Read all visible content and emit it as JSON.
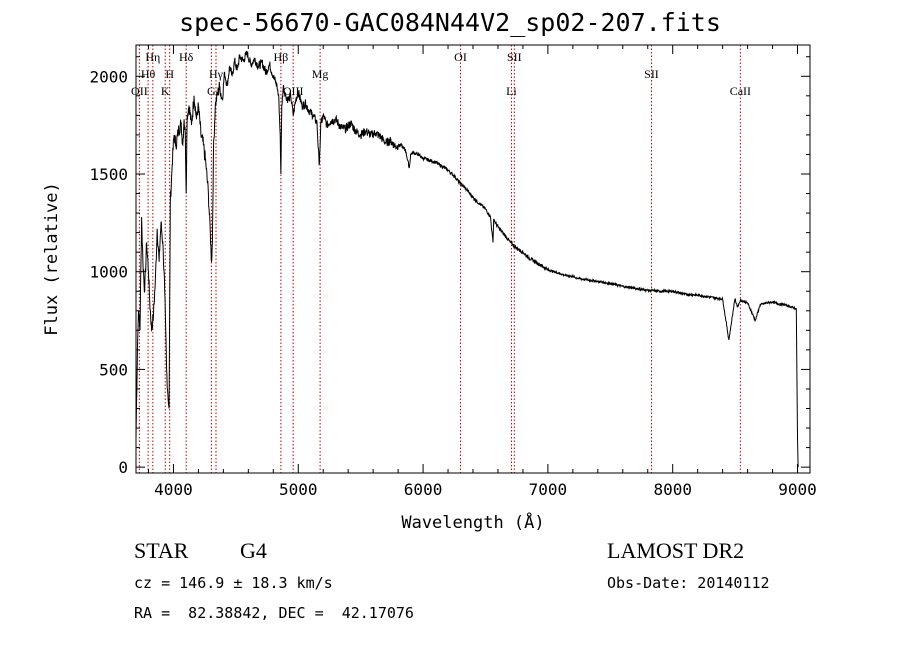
{
  "chart_data": {
    "type": "line",
    "title": "spec-56670-GAC084N44V2_sp02-207.fits",
    "xlabel": "Wavelength (Å)",
    "ylabel": "Flux (relative)",
    "xlim": [
      3700,
      9100
    ],
    "ylim": [
      -30,
      2160
    ],
    "xticks": [
      4000,
      5000,
      6000,
      7000,
      8000,
      9000
    ],
    "yticks": [
      0,
      500,
      1000,
      1500,
      2000
    ],
    "x_minor_step": 200,
    "y_minor_step": 100,
    "spectrum": {
      "name": "flux",
      "x": [
        3700,
        3712,
        3720,
        3732,
        3745,
        3755,
        3770,
        3785,
        3800,
        3810,
        3825,
        3840,
        3855,
        3870,
        3885,
        3900,
        3915,
        3930,
        3945,
        3955,
        3965,
        3975,
        3990,
        4005,
        4020,
        4040,
        4060,
        4075,
        4085,
        4095,
        4102,
        4110,
        4125,
        4145,
        4165,
        4185,
        4200,
        4220,
        4240,
        4260,
        4280,
        4295,
        4305,
        4312,
        4320,
        4335,
        4350,
        4370,
        4390,
        4410,
        4430,
        4450,
        4470,
        4490,
        4510,
        4530,
        4560,
        4590,
        4620,
        4650,
        4680,
        4710,
        4740,
        4770,
        4800,
        4830,
        4845,
        4855,
        4861,
        4868,
        4880,
        4900,
        4920,
        4940,
        4960,
        4980,
        5000,
        5030,
        5060,
        5090,
        5120,
        5150,
        5167,
        5172,
        5180,
        5200,
        5230,
        5260,
        5300,
        5340,
        5380,
        5420,
        5460,
        5500,
        5540,
        5580,
        5620,
        5660,
        5700,
        5740,
        5780,
        5820,
        5860,
        5890,
        5900,
        5920,
        5960,
        6000,
        6050,
        6100,
        6150,
        6200,
        6250,
        6300,
        6350,
        6400,
        6450,
        6500,
        6540,
        6560,
        6563,
        6566,
        6580,
        6600,
        6650,
        6700,
        6750,
        6800,
        6850,
        6900,
        6950,
        7000,
        7050,
        7100,
        7150,
        7200,
        7250,
        7300,
        7350,
        7400,
        7500,
        7600,
        7700,
        7800,
        7900,
        8000,
        8100,
        8200,
        8300,
        8400,
        8450,
        8498,
        8520,
        8542,
        8560,
        8600,
        8662,
        8700,
        8750,
        8800,
        8850,
        8900,
        8950,
        8990,
        9000,
        9005
      ],
      "y": [
        150,
        620,
        800,
        700,
        1280,
        1050,
        900,
        1150,
        1000,
        850,
        700,
        780,
        950,
        1220,
        1050,
        1250,
        1150,
        900,
        500,
        380,
        300,
        1350,
        1550,
        1700,
        1650,
        1720,
        1760,
        1650,
        1780,
        1700,
        1400,
        1800,
        1850,
        1750,
        1900,
        1780,
        1850,
        1700,
        1650,
        1550,
        1400,
        1200,
        1050,
        1150,
        1600,
        1850,
        1900,
        1950,
        1880,
        2020,
        1950,
        2050,
        2000,
        2080,
        2030,
        2100,
        2080,
        2120,
        2060,
        2090,
        2050,
        2070,
        2020,
        2060,
        2000,
        1950,
        1880,
        1700,
        1500,
        1850,
        1950,
        1900,
        1880,
        1900,
        1800,
        1880,
        1920,
        1850,
        1860,
        1820,
        1800,
        1760,
        1550,
        1600,
        1750,
        1800,
        1750,
        1770,
        1780,
        1740,
        1730,
        1760,
        1720,
        1700,
        1720,
        1700,
        1710,
        1690,
        1660,
        1670,
        1640,
        1650,
        1620,
        1530,
        1600,
        1610,
        1600,
        1580,
        1570,
        1560,
        1540,
        1520,
        1490,
        1450,
        1420,
        1380,
        1350,
        1320,
        1280,
        1150,
        1200,
        1270,
        1250,
        1230,
        1190,
        1150,
        1120,
        1100,
        1070,
        1050,
        1030,
        1010,
        1000,
        990,
        980,
        975,
        965,
        960,
        955,
        950,
        940,
        925,
        915,
        905,
        900,
        900,
        885,
        880,
        870,
        860,
        650,
        860,
        820,
        855,
        850,
        840,
        750,
        830,
        840,
        845,
        835,
        830,
        820,
        810,
        150,
        0
      ]
    },
    "line_markers": [
      {
        "wavelength": 3727,
        "label": "OII",
        "row": 3
      },
      {
        "wavelength": 3797,
        "label": "Hθ",
        "row": 2
      },
      {
        "wavelength": 3835,
        "label": "Hη",
        "row": 1
      },
      {
        "wavelength": 3934,
        "label": "K",
        "row": 3
      },
      {
        "wavelength": 3970,
        "label": "H",
        "row": 2
      },
      {
        "wavelength": 4102,
        "label": "Hδ",
        "row": 1
      },
      {
        "wavelength": 4304,
        "label": "G",
        "row": 3
      },
      {
        "wavelength": 4341,
        "label": "Hγ",
        "row": 2
      },
      {
        "wavelength": 4861,
        "label": "Hβ",
        "row": 1
      },
      {
        "wavelength": 4959,
        "label": "OIII",
        "row": 3
      },
      {
        "wavelength": 5175,
        "label": "Mg",
        "row": 2
      },
      {
        "wavelength": 6300,
        "label": "OI",
        "row": 1
      },
      {
        "wavelength": 6708,
        "label": "Li",
        "row": 3
      },
      {
        "wavelength": 6731,
        "label": "SII",
        "row": 1
      },
      {
        "wavelength": 7830,
        "label": "SII",
        "row": 2
      },
      {
        "wavelength": 8542,
        "label": "CaII",
        "row": 3
      }
    ]
  },
  "info": {
    "class": "STAR",
    "subclass": "G4",
    "survey": "LAMOST DR2",
    "cz": "cz = 146.9 ± 18.3 km/s",
    "obs_date": "Obs-Date: 20140112",
    "coords": "RA =  82.38842, DEC =  42.17076"
  },
  "colors": {
    "axis": "#000000",
    "spectrum": "#000000",
    "marker_line": "#c00000"
  }
}
